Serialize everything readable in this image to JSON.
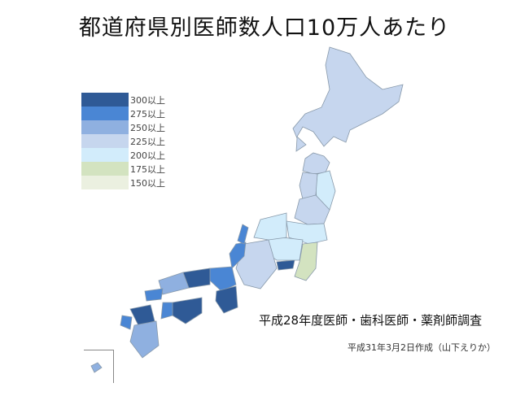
{
  "title": "都道府県別医師数人口10万人あたり",
  "legend": [
    {
      "label": "300以上",
      "color": "#2f5a96"
    },
    {
      "label": "275以上",
      "color": "#4a86d4"
    },
    {
      "label": "250以上",
      "color": "#8fb0e0"
    },
    {
      "label": "225以上",
      "color": "#c6d6ee"
    },
    {
      "label": "200以上",
      "color": "#d2ecfb"
    },
    {
      "label": "175以上",
      "color": "#d3e3c0"
    },
    {
      "label": "150以上",
      "color": "#ebf0e0"
    }
  ],
  "source": "平成28年度医師・歯科医師・薬剤師調査",
  "author": "平成31年3月2日作成（山下えりか）"
}
